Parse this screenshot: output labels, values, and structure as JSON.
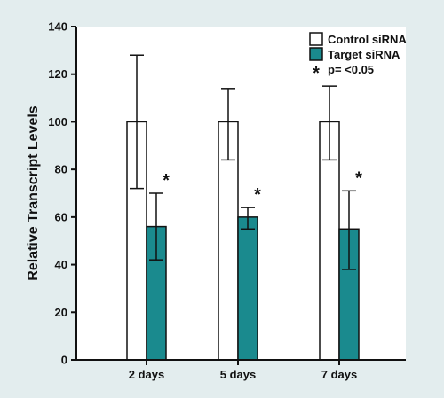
{
  "chart_data": {
    "type": "bar",
    "title": "",
    "xlabel": "",
    "ylabel": "Relative Transcript Levels",
    "categories": [
      "2 days",
      "5 days",
      "7 days"
    ],
    "ylim": [
      0,
      140
    ],
    "yticks": [
      0,
      20,
      40,
      60,
      80,
      100,
      120,
      140
    ],
    "grid": false,
    "legend_position": "top-right",
    "series": [
      {
        "name": "Control siRNA",
        "color": "#ffffff",
        "values": [
          100,
          100,
          100
        ],
        "error_upper": [
          128,
          114,
          115
        ],
        "error_lower": [
          72,
          84,
          84
        ]
      },
      {
        "name": "Target siRNA",
        "color": "#1a8a8e",
        "values": [
          56,
          60,
          55
        ],
        "error_upper": [
          70,
          64,
          71
        ],
        "error_lower": [
          42,
          55,
          38
        ]
      }
    ],
    "significance_marker": "*",
    "significance_label": "p= <0.05",
    "significant_series": "Target siRNA"
  }
}
